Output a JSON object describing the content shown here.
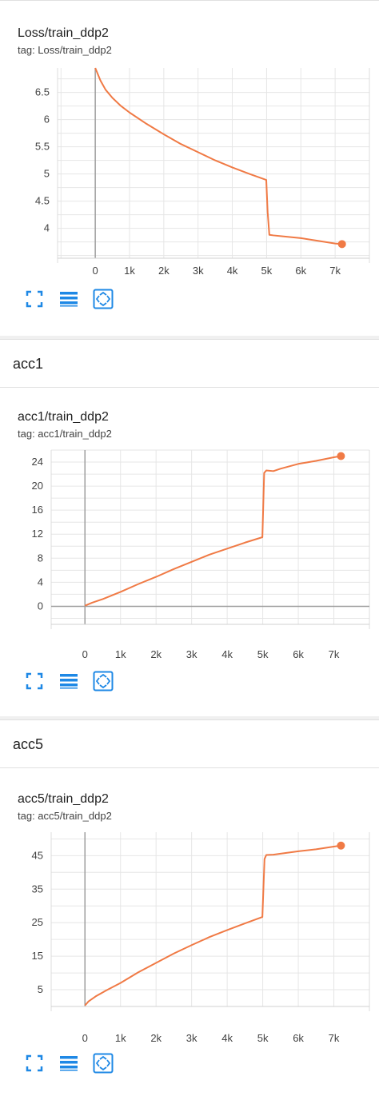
{
  "sections": [
    {
      "label": ""
    },
    {
      "label": "acc1"
    },
    {
      "label": "acc5"
    }
  ],
  "accent_color": "#f07a45",
  "toolbar": {
    "icons": [
      "fullscreen-icon",
      "data-table-icon",
      "fit-domain-icon"
    ]
  },
  "cards": [
    {
      "title": "Loss/train_ddp2",
      "tag": "tag: Loss/train_ddp2"
    },
    {
      "title": "acc1/train_ddp2",
      "tag": "tag: acc1/train_ddp2"
    },
    {
      "title": "acc5/train_ddp2",
      "tag": "tag: acc5/train_ddp2"
    }
  ],
  "chart_data": [
    {
      "type": "line",
      "title": "Loss/train_ddp2",
      "xlabel": "",
      "ylabel": "",
      "xlim": [
        -1100,
        8000
      ],
      "ylim": [
        3.45,
        6.95
      ],
      "xticks": [
        0,
        1000,
        2000,
        3000,
        4000,
        5000,
        6000,
        7000
      ],
      "xtick_labels": [
        "0",
        "1k",
        "2k",
        "3k",
        "4k",
        "5k",
        "6k",
        "7k"
      ],
      "yticks": [
        4,
        4.5,
        5,
        5.5,
        6,
        6.5
      ],
      "ytick_labels": [
        "4",
        "4.5",
        "5",
        "5.5",
        "6",
        "6.5"
      ],
      "grid": true,
      "series": [
        {
          "x": [
            0,
            150,
            300,
            500,
            750,
            1000,
            1500,
            2000,
            2500,
            3000,
            3500,
            4000,
            4500,
            4990,
            5030,
            5080,
            5200,
            5500,
            6000,
            6500,
            7000,
            7200
          ],
          "y": [
            6.95,
            6.72,
            6.55,
            6.4,
            6.25,
            6.13,
            5.92,
            5.73,
            5.55,
            5.4,
            5.25,
            5.12,
            5.0,
            4.89,
            4.3,
            3.88,
            3.87,
            3.85,
            3.82,
            3.77,
            3.72,
            3.71
          ]
        }
      ]
    },
    {
      "type": "line",
      "title": "acc1/train_ddp2",
      "xlabel": "",
      "ylabel": "",
      "xlim": [
        -950,
        8000
      ],
      "ylim": [
        -3,
        26
      ],
      "xticks": [
        0,
        1000,
        2000,
        3000,
        4000,
        5000,
        6000,
        7000
      ],
      "xtick_labels": [
        "0",
        "1k",
        "2k",
        "3k",
        "4k",
        "5k",
        "6k",
        "7k"
      ],
      "yticks": [
        0,
        4,
        8,
        12,
        16,
        20,
        24
      ],
      "ytick_labels": [
        "0",
        "4",
        "8",
        "12",
        "16",
        "20",
        "24"
      ],
      "grid": true,
      "series": [
        {
          "x": [
            0,
            200,
            500,
            1000,
            1500,
            2000,
            2500,
            3000,
            3500,
            4000,
            4500,
            4990,
            5040,
            5100,
            5300,
            5500,
            6000,
            6500,
            7000,
            7200
          ],
          "y": [
            0.1,
            0.6,
            1.2,
            2.4,
            3.7,
            4.9,
            6.2,
            7.4,
            8.6,
            9.6,
            10.6,
            11.5,
            22.2,
            22.6,
            22.5,
            22.9,
            23.7,
            24.2,
            24.8,
            25.0
          ]
        }
      ]
    },
    {
      "type": "line",
      "title": "acc5/train_ddp2",
      "xlabel": "",
      "ylabel": "",
      "xlim": [
        -950,
        8000
      ],
      "ylim": [
        0,
        52
      ],
      "xticks": [
        0,
        1000,
        2000,
        3000,
        4000,
        5000,
        6000,
        7000
      ],
      "xtick_labels": [
        "0",
        "1k",
        "2k",
        "3k",
        "4k",
        "5k",
        "6k",
        "7k"
      ],
      "yticks": [
        5,
        15,
        25,
        35,
        45
      ],
      "ytick_labels": [
        "5",
        "15",
        "25",
        "35",
        "45"
      ],
      "grid": true,
      "series": [
        {
          "x": [
            0,
            100,
            300,
            600,
            1000,
            1500,
            2000,
            2500,
            3000,
            3500,
            4000,
            4500,
            4990,
            5050,
            5100,
            5300,
            5500,
            6000,
            6500,
            7000,
            7200
          ],
          "y": [
            0.3,
            1.5,
            3.0,
            4.8,
            7.0,
            10.2,
            13.0,
            15.8,
            18.3,
            20.7,
            22.8,
            24.8,
            26.7,
            44.0,
            45.2,
            45.3,
            45.6,
            46.3,
            46.9,
            47.7,
            48.0
          ]
        }
      ]
    }
  ]
}
